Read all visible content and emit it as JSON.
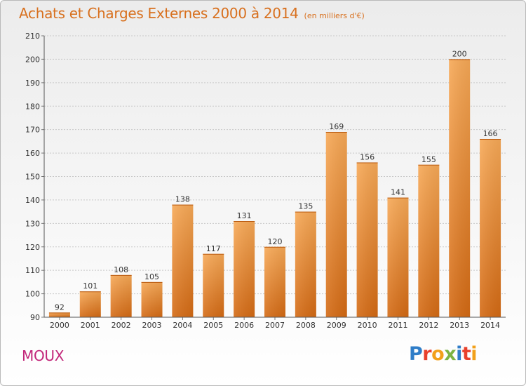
{
  "chart_data": {
    "type": "bar",
    "title": "Achats et Charges Externes 2000 à 2014",
    "subtitle": "(en milliers d'€)",
    "categories": [
      "2000",
      "2001",
      "2002",
      "2003",
      "2004",
      "2005",
      "2006",
      "2007",
      "2008",
      "2009",
      "2010",
      "2011",
      "2012",
      "2013",
      "2014"
    ],
    "values": [
      92,
      101,
      108,
      105,
      138,
      117,
      131,
      120,
      135,
      169,
      156,
      141,
      155,
      200,
      166
    ],
    "ylim": [
      90,
      210
    ],
    "yticks": [
      90,
      100,
      110,
      120,
      130,
      140,
      150,
      160,
      170,
      180,
      190,
      200,
      210
    ],
    "grid": true,
    "bar_color": "#f0903a"
  },
  "footer": {
    "commune": "MOUX",
    "brand": "Proxiti",
    "brand_colors": [
      "#2f7dc8",
      "#e8402c",
      "#f2a01a",
      "#7cb342",
      "#2f7dc8",
      "#e8402c",
      "#f2a01a"
    ]
  }
}
